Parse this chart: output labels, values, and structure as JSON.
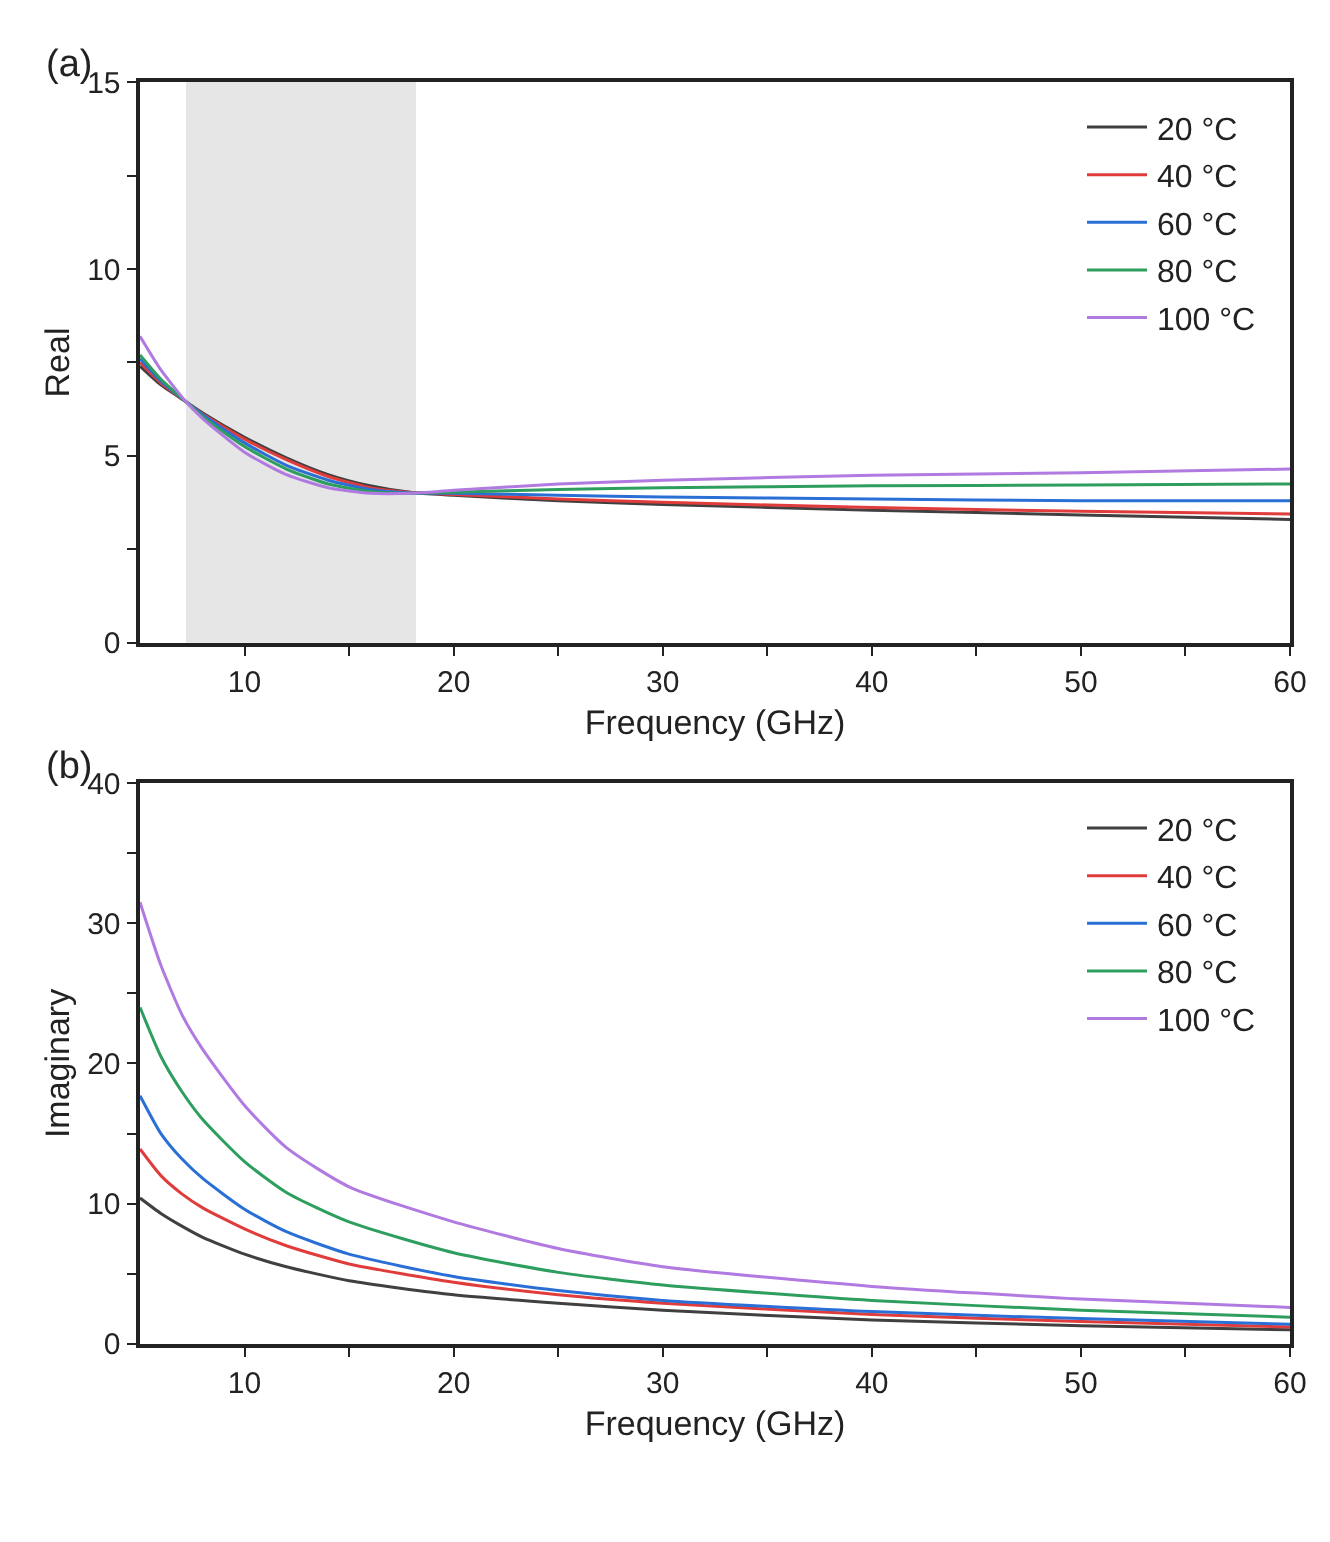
{
  "chart_data": [
    {
      "type": "line",
      "title": "(a)",
      "xlabel": "Frequency (GHz)",
      "ylabel": "Real",
      "x": [
        5,
        6,
        7.2,
        8,
        10,
        12,
        14,
        16,
        18,
        20,
        25,
        30,
        40,
        50,
        60
      ],
      "series": [
        {
          "name": "20 °C",
          "color": "#404040",
          "values": [
            7.4,
            6.9,
            6.45,
            6.15,
            5.5,
            4.95,
            4.5,
            4.2,
            4.02,
            3.95,
            3.8,
            3.7,
            3.55,
            3.42,
            3.3
          ]
        },
        {
          "name": "40 °C",
          "color": "#e03c3c",
          "values": [
            7.5,
            6.95,
            6.45,
            6.12,
            5.45,
            4.9,
            4.45,
            4.15,
            4.02,
            3.97,
            3.85,
            3.76,
            3.62,
            3.52,
            3.45
          ]
        },
        {
          "name": "60 °C",
          "color": "#2a6fd6",
          "values": [
            7.6,
            7.0,
            6.45,
            6.1,
            5.35,
            4.75,
            4.35,
            4.1,
            4.01,
            4.0,
            3.95,
            3.9,
            3.85,
            3.8,
            3.8
          ]
        },
        {
          "name": "80 °C",
          "color": "#2e9e5e",
          "values": [
            7.7,
            7.05,
            6.45,
            6.05,
            5.25,
            4.65,
            4.25,
            4.05,
            4.0,
            4.03,
            4.1,
            4.15,
            4.2,
            4.22,
            4.25
          ]
        },
        {
          "name": "100 °C",
          "color": "#b07ae0",
          "values": [
            8.2,
            7.3,
            6.45,
            6.0,
            5.1,
            4.5,
            4.15,
            4.0,
            4.0,
            4.08,
            4.25,
            4.35,
            4.48,
            4.55,
            4.65
          ]
        }
      ],
      "bands": [
        {
          "axis": "x",
          "from": 7.2,
          "to": 18.2,
          "color": "#e6e6e6"
        }
      ],
      "xlim": [
        5,
        60
      ],
      "xticks": [
        10,
        {
          "value": 15,
          "label": null
        },
        20,
        {
          "value": 25,
          "label": null
        },
        30,
        {
          "value": 35,
          "label": null
        },
        40,
        {
          "value": 45,
          "label": null
        },
        50,
        {
          "value": 55,
          "label": null
        },
        60
      ],
      "ylim": [
        0,
        15
      ],
      "yticks": [
        0,
        {
          "value": 2.5,
          "label": null
        },
        5,
        {
          "value": 7.5,
          "label": null
        },
        10,
        {
          "value": 12.5,
          "label": null
        },
        15
      ],
      "legend": "top right",
      "grid": false,
      "line_style": "solid",
      "marker": "none"
    },
    {
      "type": "line",
      "title": "(b)",
      "xlabel": "Frequency (GHz)",
      "ylabel": "Imaginary",
      "x": [
        5,
        6,
        7,
        8,
        10,
        12,
        15,
        20,
        25,
        30,
        40,
        50,
        60
      ],
      "series": [
        {
          "name": "20 °C",
          "color": "#404040",
          "values": [
            10.4,
            9.3,
            8.4,
            7.6,
            6.4,
            5.5,
            4.5,
            3.5,
            2.9,
            2.4,
            1.7,
            1.3,
            1.0
          ]
        },
        {
          "name": "40 °C",
          "color": "#e03c3c",
          "values": [
            13.9,
            12,
            10.7,
            9.7,
            8.2,
            7,
            5.7,
            4.4,
            3.5,
            2.9,
            2.1,
            1.6,
            1.2
          ]
        },
        {
          "name": "60 °C",
          "color": "#2a6fd6",
          "values": [
            17.7,
            15,
            13.2,
            11.8,
            9.6,
            8,
            6.4,
            4.8,
            3.8,
            3.1,
            2.3,
            1.8,
            1.4
          ]
        },
        {
          "name": "80 °C",
          "color": "#2e9e5e",
          "values": [
            24,
            20.5,
            18,
            16,
            13,
            10.8,
            8.7,
            6.5,
            5.1,
            4.2,
            3.1,
            2.4,
            1.9
          ]
        },
        {
          "name": "100 °C",
          "color": "#b07ae0",
          "values": [
            31.5,
            27,
            23.5,
            21,
            17,
            14,
            11.2,
            8.7,
            6.8,
            5.5,
            4.1,
            3.2,
            2.6
          ]
        }
      ],
      "xlim": [
        5,
        60
      ],
      "xticks": [
        10,
        {
          "value": 15,
          "label": null
        },
        20,
        {
          "value": 25,
          "label": null
        },
        30,
        {
          "value": 35,
          "label": null
        },
        40,
        {
          "value": 45,
          "label": null
        },
        50,
        {
          "value": 55,
          "label": null
        },
        60
      ],
      "ylim": [
        0,
        40
      ],
      "yticks": [
        0,
        {
          "value": 5,
          "label": null
        },
        10,
        {
          "value": 15,
          "label": null
        },
        20,
        {
          "value": 25,
          "label": null
        },
        30,
        {
          "value": 35,
          "label": null
        },
        40
      ],
      "legend": "top right",
      "grid": false,
      "line_style": "solid",
      "marker": "none"
    }
  ]
}
